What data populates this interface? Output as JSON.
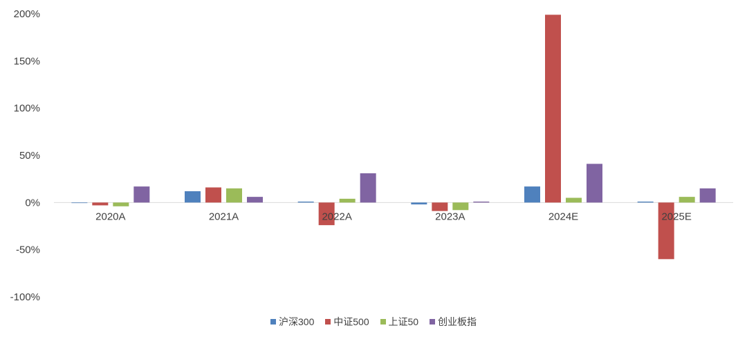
{
  "chart_data": {
    "type": "bar",
    "categories": [
      "2020A",
      "2021A",
      "2022A",
      "2023A",
      "2024E",
      "2025E"
    ],
    "series": [
      {
        "name": "沪深300",
        "color": "#4F81BD",
        "values": [
          0,
          12,
          1,
          -2,
          17,
          1
        ]
      },
      {
        "name": "中证500",
        "color": "#C0504D",
        "values": [
          -3,
          16,
          -24,
          -9,
          199,
          -60
        ]
      },
      {
        "name": "上证50",
        "color": "#9BBB59",
        "values": [
          -4,
          15,
          4,
          -8,
          5,
          6
        ]
      },
      {
        "name": "创业板指",
        "color": "#8064A2",
        "values": [
          17,
          6,
          31,
          1,
          41,
          15
        ]
      }
    ],
    "ylim": [
      -100,
      200
    ],
    "yticks": [
      -100,
      -50,
      0,
      50,
      100,
      150,
      200
    ],
    "ytick_labels": [
      "-100%",
      "-50%",
      "0%",
      "50%",
      "100%",
      "150%",
      "200%"
    ],
    "grid": false,
    "legend_position": "bottom"
  }
}
